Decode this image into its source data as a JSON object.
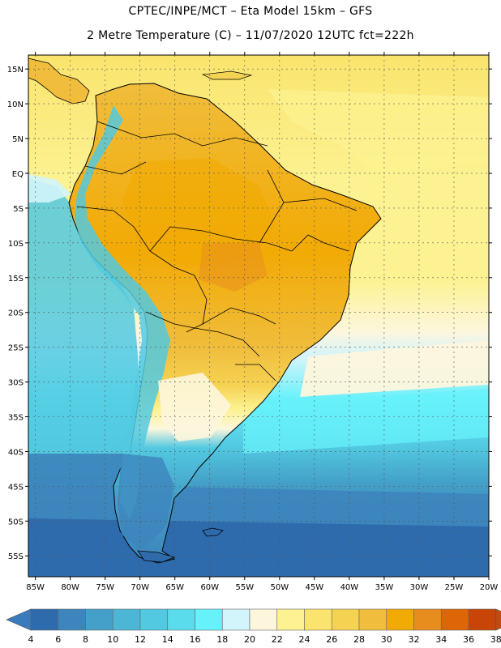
{
  "header": {
    "line1": "CPTEC/INPE/MCT –  Eta Model 15km – GFS",
    "line2": "2 Metre Temperature (C) – 11/07/2020 12UTC fct=222h"
  },
  "map": {
    "region": "South America",
    "field": "2 Metre Temperature",
    "units": "C",
    "lat_range": [
      -58,
      17
    ],
    "lon_range": [
      -86,
      -20
    ],
    "lat_labels": [
      {
        "lat": 15,
        "label": "15N"
      },
      {
        "lat": 10,
        "label": "10N"
      },
      {
        "lat": 5,
        "label": "5N"
      },
      {
        "lat": 0,
        "label": "EQ"
      },
      {
        "lat": -5,
        "label": "5S"
      },
      {
        "lat": -10,
        "label": "10S"
      },
      {
        "lat": -15,
        "label": "15S"
      },
      {
        "lat": -20,
        "label": "20S"
      },
      {
        "lat": -25,
        "label": "25S"
      },
      {
        "lat": -30,
        "label": "30S"
      },
      {
        "lat": -35,
        "label": "35S"
      },
      {
        "lat": -40,
        "label": "40S"
      },
      {
        "lat": -45,
        "label": "45S"
      },
      {
        "lat": -50,
        "label": "50S"
      },
      {
        "lat": -55,
        "label": "55S"
      }
    ],
    "lon_labels": [
      {
        "lon": -85,
        "label": "85W"
      },
      {
        "lon": -80,
        "label": "80W"
      },
      {
        "lon": -75,
        "label": "75W"
      },
      {
        "lon": -70,
        "label": "70W"
      },
      {
        "lon": -65,
        "label": "65W"
      },
      {
        "lon": -60,
        "label": "60W"
      },
      {
        "lon": -55,
        "label": "55W"
      },
      {
        "lon": -50,
        "label": "50W"
      },
      {
        "lon": -45,
        "label": "45W"
      },
      {
        "lon": -40,
        "label": "40W"
      },
      {
        "lon": -35,
        "label": "35W"
      },
      {
        "lon": -30,
        "label": "30W"
      },
      {
        "lon": -25,
        "label": "25W"
      },
      {
        "lon": -20,
        "label": "20W"
      }
    ]
  },
  "colorbar": {
    "labels": [
      "4",
      "6",
      "8",
      "10",
      "12",
      "14",
      "16",
      "18",
      "20",
      "22",
      "24",
      "26",
      "28",
      "30",
      "32",
      "34",
      "36",
      "38"
    ],
    "colors": [
      "#2e6bad",
      "#3d85bd",
      "#44a0c8",
      "#4cb6d6",
      "#52c9e1",
      "#5adcec",
      "#67f1fb",
      "#d2f4fb",
      "#fdf6dd",
      "#fcf291",
      "#fae46d",
      "#f6d253",
      "#f0bd3c",
      "#f2aa04",
      "#e68d1e",
      "#dd6707",
      "#c84507"
    ],
    "low_color": "#3a7bbd",
    "high_color": "#c04a10"
  }
}
